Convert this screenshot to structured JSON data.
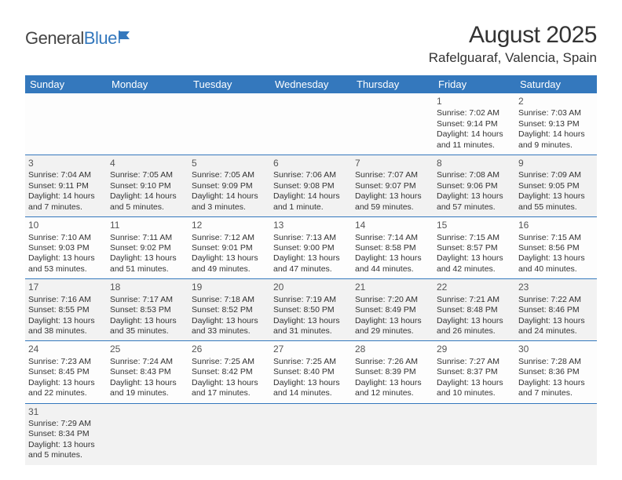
{
  "logo": {
    "text_a": "General",
    "text_b": "Blue"
  },
  "title": "August 2025",
  "location": "Rafelguaraf, Valencia, Spain",
  "day_headers": [
    "Sunday",
    "Monday",
    "Tuesday",
    "Wednesday",
    "Thursday",
    "Friday",
    "Saturday"
  ],
  "colors": {
    "header_bg": "#3478bd",
    "header_fg": "#ffffff",
    "cell_border": "#3478bd",
    "shaded_bg": "#f2f2f2"
  },
  "weeks": [
    [
      null,
      null,
      null,
      null,
      null,
      {
        "n": "1",
        "sr": "Sunrise: 7:02 AM",
        "ss": "Sunset: 9:14 PM",
        "dl": "Daylight: 14 hours and 11 minutes."
      },
      {
        "n": "2",
        "sr": "Sunrise: 7:03 AM",
        "ss": "Sunset: 9:13 PM",
        "dl": "Daylight: 14 hours and 9 minutes."
      }
    ],
    [
      {
        "n": "3",
        "sr": "Sunrise: 7:04 AM",
        "ss": "Sunset: 9:11 PM",
        "dl": "Daylight: 14 hours and 7 minutes."
      },
      {
        "n": "4",
        "sr": "Sunrise: 7:05 AM",
        "ss": "Sunset: 9:10 PM",
        "dl": "Daylight: 14 hours and 5 minutes."
      },
      {
        "n": "5",
        "sr": "Sunrise: 7:05 AM",
        "ss": "Sunset: 9:09 PM",
        "dl": "Daylight: 14 hours and 3 minutes."
      },
      {
        "n": "6",
        "sr": "Sunrise: 7:06 AM",
        "ss": "Sunset: 9:08 PM",
        "dl": "Daylight: 14 hours and 1 minute."
      },
      {
        "n": "7",
        "sr": "Sunrise: 7:07 AM",
        "ss": "Sunset: 9:07 PM",
        "dl": "Daylight: 13 hours and 59 minutes."
      },
      {
        "n": "8",
        "sr": "Sunrise: 7:08 AM",
        "ss": "Sunset: 9:06 PM",
        "dl": "Daylight: 13 hours and 57 minutes."
      },
      {
        "n": "9",
        "sr": "Sunrise: 7:09 AM",
        "ss": "Sunset: 9:05 PM",
        "dl": "Daylight: 13 hours and 55 minutes."
      }
    ],
    [
      {
        "n": "10",
        "sr": "Sunrise: 7:10 AM",
        "ss": "Sunset: 9:03 PM",
        "dl": "Daylight: 13 hours and 53 minutes."
      },
      {
        "n": "11",
        "sr": "Sunrise: 7:11 AM",
        "ss": "Sunset: 9:02 PM",
        "dl": "Daylight: 13 hours and 51 minutes."
      },
      {
        "n": "12",
        "sr": "Sunrise: 7:12 AM",
        "ss": "Sunset: 9:01 PM",
        "dl": "Daylight: 13 hours and 49 minutes."
      },
      {
        "n": "13",
        "sr": "Sunrise: 7:13 AM",
        "ss": "Sunset: 9:00 PM",
        "dl": "Daylight: 13 hours and 47 minutes."
      },
      {
        "n": "14",
        "sr": "Sunrise: 7:14 AM",
        "ss": "Sunset: 8:58 PM",
        "dl": "Daylight: 13 hours and 44 minutes."
      },
      {
        "n": "15",
        "sr": "Sunrise: 7:15 AM",
        "ss": "Sunset: 8:57 PM",
        "dl": "Daylight: 13 hours and 42 minutes."
      },
      {
        "n": "16",
        "sr": "Sunrise: 7:15 AM",
        "ss": "Sunset: 8:56 PM",
        "dl": "Daylight: 13 hours and 40 minutes."
      }
    ],
    [
      {
        "n": "17",
        "sr": "Sunrise: 7:16 AM",
        "ss": "Sunset: 8:55 PM",
        "dl": "Daylight: 13 hours and 38 minutes."
      },
      {
        "n": "18",
        "sr": "Sunrise: 7:17 AM",
        "ss": "Sunset: 8:53 PM",
        "dl": "Daylight: 13 hours and 35 minutes."
      },
      {
        "n": "19",
        "sr": "Sunrise: 7:18 AM",
        "ss": "Sunset: 8:52 PM",
        "dl": "Daylight: 13 hours and 33 minutes."
      },
      {
        "n": "20",
        "sr": "Sunrise: 7:19 AM",
        "ss": "Sunset: 8:50 PM",
        "dl": "Daylight: 13 hours and 31 minutes."
      },
      {
        "n": "21",
        "sr": "Sunrise: 7:20 AM",
        "ss": "Sunset: 8:49 PM",
        "dl": "Daylight: 13 hours and 29 minutes."
      },
      {
        "n": "22",
        "sr": "Sunrise: 7:21 AM",
        "ss": "Sunset: 8:48 PM",
        "dl": "Daylight: 13 hours and 26 minutes."
      },
      {
        "n": "23",
        "sr": "Sunrise: 7:22 AM",
        "ss": "Sunset: 8:46 PM",
        "dl": "Daylight: 13 hours and 24 minutes."
      }
    ],
    [
      {
        "n": "24",
        "sr": "Sunrise: 7:23 AM",
        "ss": "Sunset: 8:45 PM",
        "dl": "Daylight: 13 hours and 22 minutes."
      },
      {
        "n": "25",
        "sr": "Sunrise: 7:24 AM",
        "ss": "Sunset: 8:43 PM",
        "dl": "Daylight: 13 hours and 19 minutes."
      },
      {
        "n": "26",
        "sr": "Sunrise: 7:25 AM",
        "ss": "Sunset: 8:42 PM",
        "dl": "Daylight: 13 hours and 17 minutes."
      },
      {
        "n": "27",
        "sr": "Sunrise: 7:25 AM",
        "ss": "Sunset: 8:40 PM",
        "dl": "Daylight: 13 hours and 14 minutes."
      },
      {
        "n": "28",
        "sr": "Sunrise: 7:26 AM",
        "ss": "Sunset: 8:39 PM",
        "dl": "Daylight: 13 hours and 12 minutes."
      },
      {
        "n": "29",
        "sr": "Sunrise: 7:27 AM",
        "ss": "Sunset: 8:37 PM",
        "dl": "Daylight: 13 hours and 10 minutes."
      },
      {
        "n": "30",
        "sr": "Sunrise: 7:28 AM",
        "ss": "Sunset: 8:36 PM",
        "dl": "Daylight: 13 hours and 7 minutes."
      }
    ],
    [
      {
        "n": "31",
        "sr": "Sunrise: 7:29 AM",
        "ss": "Sunset: 8:34 PM",
        "dl": "Daylight: 13 hours and 5 minutes."
      },
      null,
      null,
      null,
      null,
      null,
      null
    ]
  ]
}
